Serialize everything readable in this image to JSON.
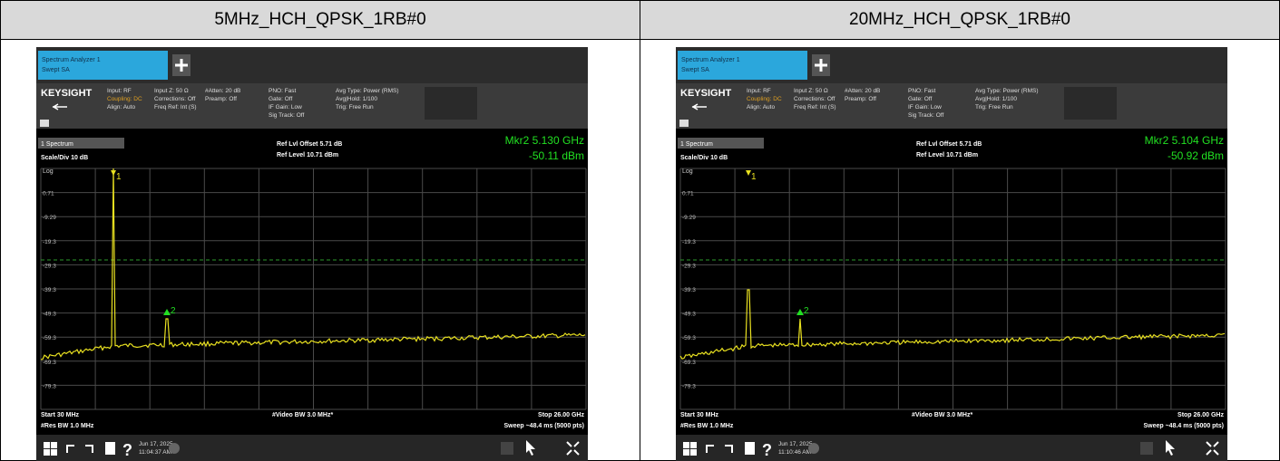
{
  "header": {
    "cells": [
      "5MHz_HCH_QPSK_1RB#0",
      "20MHz_HCH_QPSK_1RB#0"
    ]
  },
  "panels": [
    {
      "tab_title": "Spectrum Analyzer 1",
      "tab_subtitle": "Swept SA",
      "brand": "KEYSIGHT",
      "info": [
        "Input: RF",
        "Coupling: DC",
        "Align: Auto",
        "Input Z: 50 Ω",
        "Corrections: Off",
        "Freq Ref: Int (S)",
        "#Atten: 20 dB",
        "Preamp: Off",
        "PNO: Fast",
        "Gate: Off",
        "IF Gain: Low",
        "Sig Track: Off",
        "Avg Type: Power (RMS)",
        "Avg|Hold: 1/100",
        "Trig: Free Run"
      ],
      "trace_name": "1 Spectrum",
      "scale": "Scale/Div 10 dB",
      "log": "Log",
      "ref_offset": "Ref Lvl Offset 5.71 dB",
      "ref_level": "Ref Level 10.71 dBm",
      "marker_freq": "Mkr2  5.130 GHz",
      "marker_level": "-50.11 dBm",
      "y_labels": [
        "0.71",
        "-9.29",
        "-19.3",
        "-29.3",
        "-39.3",
        "-49.3",
        "-59.3",
        "-69.3",
        "-79.3"
      ],
      "markers": [
        "1",
        "2"
      ],
      "start": "Start 30 MHz",
      "res_bw": "#Res BW 1.0 MHz",
      "video_bw": "#Video BW 3.0 MHz*",
      "stop": "Stop 26.00 GHz",
      "sweep": "Sweep ~48.4 ms (5000 pts)",
      "date": "Jun 17, 2025",
      "time": "11:04:37 AM"
    },
    {
      "tab_title": "Spectrum Analyzer 1",
      "tab_subtitle": "Swept SA",
      "brand": "KEYSIGHT",
      "info": [
        "Input: RF",
        "Coupling: DC",
        "Align: Auto",
        "Input Z: 50 Ω",
        "Corrections: Off",
        "Freq Ref: Int (S)",
        "#Atten: 20 dB",
        "Preamp: Off",
        "PNO: Fast",
        "Gate: Off",
        "IF Gain: Low",
        "Sig Track: Off",
        "Avg Type: Power (RMS)",
        "Avg|Hold: 1/100",
        "Trig: Free Run"
      ],
      "trace_name": "1 Spectrum",
      "scale": "Scale/Div 10 dB",
      "log": "Log",
      "ref_offset": "Ref Lvl Offset 5.71 dB",
      "ref_level": "Ref Level 10.71 dBm",
      "marker_freq": "Mkr2  5.104 GHz",
      "marker_level": "-50.92 dBm",
      "y_labels": [
        "0.71",
        "-9.29",
        "-19.3",
        "-29.3",
        "-39.3",
        "-49.3",
        "-59.3",
        "-69.3",
        "-79.3"
      ],
      "markers": [
        "1",
        "2"
      ],
      "start": "Start 30 MHz",
      "res_bw": "#Res BW 1.0 MHz",
      "video_bw": "#Video BW 3.0 MHz*",
      "stop": "Stop 26.00 GHz",
      "sweep": "Sweep ~48.4 ms (5000 pts)",
      "date": "Jun 17, 2025",
      "time": "11:10:46 AM"
    }
  ]
}
